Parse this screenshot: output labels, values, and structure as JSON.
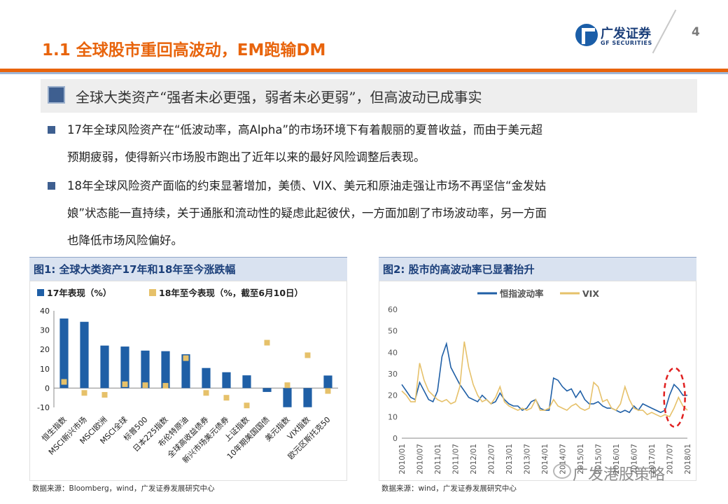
{
  "header": {
    "title": "1.1 全球股市重回高波动，EM跑输DM",
    "page_number": "4",
    "logo_cn": "广发证券",
    "logo_en": "GF SECURITIES",
    "colors": {
      "accent_orange": "#e8640c",
      "accent_blue": "#1b3f7a"
    }
  },
  "subtitle": "全球大类资产“强者未必更强，弱者未必更弱”，但高波动已成事实",
  "bullets": [
    {
      "line1": "17年全球风险资产在“低波动率，高Alpha”的市场环境下有着靓丽的夏普收益，而由于美元超",
      "line2": "预期疲弱，使得新兴市场股市跑出了近年以来的最好风险调整后表现。"
    },
    {
      "line1": "18年全球风险资产面临的约束显著增加，美债、VIX、美元和原油走强让市场不再坚信“金发姑",
      "line2": "娘”状态能一直持续，关于通胀和流动性的疑虑此起彼伏，一方面加剧了市场波动率，另一方面",
      "line3": "也降低市场风险偏好。"
    }
  ],
  "figure1": {
    "heading": "图1:  全球大类资产17年和18年至今涨跌幅",
    "source": "数据来源：Bloomberg，wind，广发证券发展研究中心"
  },
  "figure2": {
    "heading": "图2:  股市的高波动率已显著抬升",
    "source": "数据来源：wind，广发证券发展研究中心"
  },
  "watermark": "广发港股策略",
  "chart_data": [
    {
      "type": "bar",
      "legend_placement": "top",
      "categories": [
        "恒生指数",
        "MSCI新兴市场",
        "MSCI欧洲",
        "MSCI全球",
        "标普500",
        "日本225指数",
        "布伦特原油",
        "全球高收益债券",
        "新兴市场美元债券",
        "上证指数",
        "10年期美国国债",
        "美元指数",
        "VIX指数",
        "欧元区斯托克50"
      ],
      "series": [
        {
          "name": "17年表现（%）",
          "color": "#1f5fa6",
          "style": "bar",
          "values": [
            36,
            34.3,
            22,
            21.5,
            19.4,
            19.1,
            17.5,
            10.4,
            8.2,
            6.6,
            -2,
            -9.9,
            -9.9,
            6.5
          ]
        },
        {
          "name": "18年至今表现（%，截至6月10日）",
          "color": "#e6c16a",
          "style": "marker",
          "values": [
            3.2,
            -2.5,
            -3.5,
            2,
            1.5,
            1.2,
            15.5,
            -2.5,
            -5,
            -9,
            23.5,
            1.5,
            17,
            -1.5
          ]
        }
      ],
      "ylim": [
        -10,
        40
      ],
      "yticks": [
        -10,
        0,
        10,
        20,
        30,
        40
      ]
    },
    {
      "type": "line",
      "legend_placement": "top",
      "x_ticks": [
        "2010/01",
        "2010/07",
        "2011/01",
        "2011/07",
        "2012/01",
        "2012/07",
        "2013/01",
        "2013/07",
        "2014/01",
        "2014/07",
        "2015/01",
        "2015/07",
        "2016/01",
        "2016/07",
        "2017/01",
        "2017/07",
        "2018/01"
      ],
      "ylim": [
        0,
        60
      ],
      "yticks": [
        0,
        10,
        20,
        30,
        40,
        50,
        60
      ],
      "highlight": {
        "note": "red dashed ellipse around 2018 spike",
        "color": "#e02020"
      },
      "series": [
        {
          "name": "恒指波动率",
          "color": "#1f5fa6",
          "values": [
            25,
            22,
            19,
            18,
            26,
            22,
            18,
            17,
            22,
            38,
            44,
            33,
            29,
            25,
            22,
            19,
            18,
            17,
            20,
            18,
            16,
            17,
            21,
            18,
            16,
            15,
            15,
            13,
            14,
            17,
            18,
            14,
            13,
            13,
            28,
            27,
            24,
            22,
            23,
            19,
            22,
            18,
            16,
            16,
            17,
            15,
            14,
            14,
            13,
            12,
            13,
            12,
            15,
            13,
            16,
            15,
            14,
            13,
            12,
            13,
            20,
            25,
            23,
            20,
            20
          ]
        },
        {
          "name": "VIX",
          "color": "#e6c16a",
          "values": [
            22,
            20,
            17,
            17,
            35,
            27,
            22,
            20,
            18,
            17,
            18,
            16,
            17,
            24,
            45,
            33,
            25,
            20,
            17,
            18,
            16,
            19,
            24,
            17,
            15,
            14,
            13,
            14,
            13,
            14,
            18,
            13,
            13,
            14,
            18,
            15,
            14,
            13,
            15,
            16,
            14,
            13,
            14,
            26,
            24,
            17,
            18,
            14,
            13,
            16,
            24,
            18,
            14,
            13,
            13,
            11,
            12,
            11,
            10,
            11,
            10,
            14,
            19,
            15,
            13
          ]
        }
      ]
    }
  ]
}
